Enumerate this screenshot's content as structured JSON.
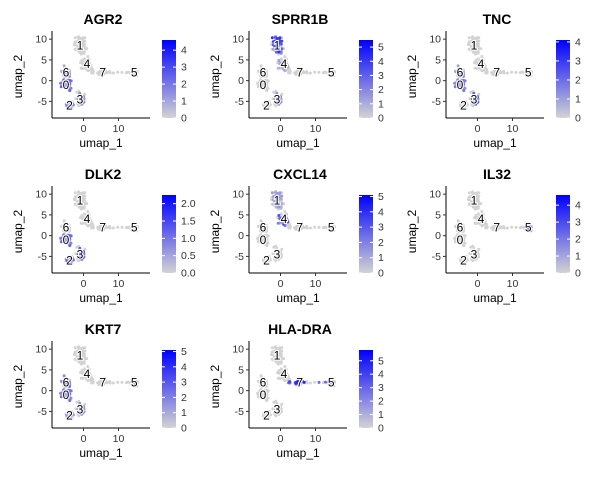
{
  "colors": {
    "low": "#d3d3d3",
    "high": "#0000ff",
    "label_outline": "#ffffff"
  },
  "chart_data": [
    {
      "type": "scatter",
      "title": "AGR2",
      "xlabel": "umap_1",
      "ylabel": "umap_2",
      "xlim": [
        -9,
        19
      ],
      "ylim": [
        -9,
        11
      ],
      "xticks": [
        0,
        10
      ],
      "yticks": [
        -5,
        0,
        5,
        10
      ],
      "legend_ticks": [
        0,
        1,
        2,
        3,
        4
      ],
      "max": 4.6,
      "hot": [
        {
          "c": "0",
          "v": 2.5
        },
        {
          "c": "2",
          "v": 2.5
        },
        {
          "c": "3",
          "v": 1.8
        },
        {
          "c": "6",
          "v": 1.5
        }
      ]
    },
    {
      "type": "scatter",
      "title": "SPRR1B",
      "xlabel": "umap_1",
      "ylabel": "umap_2",
      "xlim": [
        -9,
        19
      ],
      "ylim": [
        -9,
        11
      ],
      "xticks": [
        0,
        10
      ],
      "yticks": [
        -5,
        0,
        5,
        10
      ],
      "legend_ticks": [
        0,
        1,
        2,
        3,
        4,
        5
      ],
      "max": 5.5,
      "hot": [
        {
          "c": "1",
          "v": 4.5
        },
        {
          "c": "3",
          "v": 2
        },
        {
          "c": "4",
          "v": 1.5
        }
      ]
    },
    {
      "type": "scatter",
      "title": "TNC",
      "xlabel": "umap_1",
      "ylabel": "umap_2",
      "xlim": [
        -9,
        19
      ],
      "ylim": [
        -9,
        11
      ],
      "xticks": [
        0,
        10
      ],
      "yticks": [
        -5,
        0,
        5,
        10
      ],
      "legend_ticks": [
        0,
        1,
        2,
        3,
        4
      ],
      "max": 4.1,
      "hot": [
        {
          "c": "3",
          "v": 2.5
        },
        {
          "c": "0",
          "v": 1.8
        },
        {
          "c": "6",
          "v": 1.5
        }
      ]
    },
    {
      "type": "scatter",
      "title": "DLK2",
      "xlabel": "umap_1",
      "ylabel": "umap_2",
      "xlim": [
        -9,
        19
      ],
      "ylim": [
        -9,
        11
      ],
      "xticks": [
        0,
        10
      ],
      "yticks": [
        -5,
        0,
        5,
        10
      ],
      "legend_ticks": [
        0.0,
        0.5,
        1.0,
        1.5,
        2.0
      ],
      "legend_fmt": 1,
      "max": 2.25,
      "hot": [
        {
          "c": "2",
          "v": 1.6
        },
        {
          "c": "3",
          "v": 1.4
        },
        {
          "c": "0",
          "v": 1.2
        }
      ]
    },
    {
      "type": "scatter",
      "title": "CXCL14",
      "xlabel": "umap_1",
      "ylabel": "umap_2",
      "xlim": [
        -9,
        19
      ],
      "ylim": [
        -9,
        11
      ],
      "xticks": [
        0,
        10
      ],
      "yticks": [
        -5,
        0,
        5,
        10
      ],
      "legend_ticks": [
        0,
        1,
        2,
        3,
        4,
        5
      ],
      "max": 5.1,
      "hot": [
        {
          "c": "4",
          "v": 3.5
        },
        {
          "c": "1",
          "v": 1.5
        }
      ]
    },
    {
      "type": "scatter",
      "title": "IL32",
      "xlabel": "umap_1",
      "ylabel": "umap_2",
      "xlim": [
        -9,
        19
      ],
      "ylim": [
        -9,
        11
      ],
      "xticks": [
        0,
        10
      ],
      "yticks": [
        -5,
        0,
        5,
        10
      ],
      "legend_ticks": [
        0,
        1,
        2,
        3,
        4
      ],
      "max": 4.6,
      "hot": [
        {
          "c": "5",
          "v": 4
        }
      ]
    },
    {
      "type": "scatter",
      "title": "KRT7",
      "xlabel": "umap_1",
      "ylabel": "umap_2",
      "xlim": [
        -9,
        19
      ],
      "ylim": [
        -9,
        11
      ],
      "xticks": [
        0,
        10
      ],
      "yticks": [
        -5,
        0,
        5,
        10
      ],
      "legend_ticks": [
        0,
        1,
        2,
        3,
        4,
        5
      ],
      "max": 5.1,
      "hot": [
        {
          "c": "6",
          "v": 3
        },
        {
          "c": "0",
          "v": 2.5
        },
        {
          "c": "2",
          "v": 2
        },
        {
          "c": "3",
          "v": 1.8
        },
        {
          "c": "5",
          "v": 1.5
        }
      ]
    },
    {
      "type": "scatter",
      "title": "HLA-DRA",
      "xlabel": "umap_1",
      "ylabel": "umap_2",
      "xlim": [
        -9,
        19
      ],
      "ylim": [
        -9,
        11
      ],
      "xticks": [
        0,
        10
      ],
      "yticks": [
        -5,
        0,
        5,
        10
      ],
      "legend_ticks": [
        0,
        1,
        2,
        3,
        4,
        5
      ],
      "max": 5.8,
      "hot": [
        {
          "c": "7",
          "v": 5
        },
        {
          "c": "5",
          "v": 2
        }
      ]
    }
  ],
  "clusters": [
    {
      "id": "1",
      "center": [
        -1,
        8.5
      ]
    },
    {
      "id": "4",
      "center": [
        1,
        4
      ]
    },
    {
      "id": "7",
      "center": [
        5.5,
        2
      ]
    },
    {
      "id": "5",
      "center": [
        14.5,
        2
      ]
    },
    {
      "id": "6",
      "center": [
        -5,
        2
      ]
    },
    {
      "id": "0",
      "center": [
        -5,
        -1
      ]
    },
    {
      "id": "3",
      "center": [
        -1,
        -4.5
      ]
    },
    {
      "id": "2",
      "center": [
        -4,
        -6
      ]
    }
  ]
}
